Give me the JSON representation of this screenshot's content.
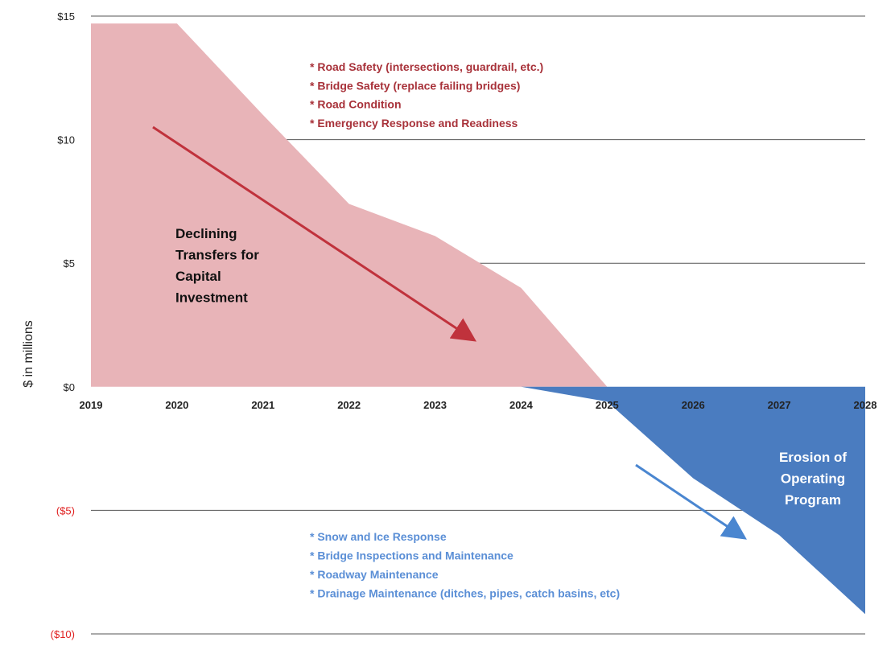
{
  "chart_data": {
    "type": "area",
    "ylabel": "$ in millions",
    "x": [
      "2019",
      "2020",
      "2021",
      "2022",
      "2023",
      "2024",
      "2025",
      "2026",
      "2027",
      "2028"
    ],
    "ylim": [
      -10,
      15
    ],
    "y_ticks": [
      {
        "value": 15,
        "label": "$15"
      },
      {
        "value": 10,
        "label": "$10"
      },
      {
        "value": 5,
        "label": "$5"
      },
      {
        "value": 0,
        "label": "$0"
      },
      {
        "value": -5,
        "label": "($5)"
      },
      {
        "value": -10,
        "label": "($10)"
      }
    ],
    "grid": true,
    "series": [
      {
        "color": "#e8b4b8",
        "points": [
          [
            2019,
            14.7
          ],
          [
            2020,
            14.7
          ],
          [
            2021,
            11.0
          ],
          [
            2022,
            7.4
          ],
          [
            2023,
            6.1
          ],
          [
            2024,
            4.0
          ],
          [
            2025,
            0
          ]
        ]
      },
      {
        "color": "#4a7cc0",
        "points": [
          [
            2024,
            0
          ],
          [
            2025,
            -0.6
          ],
          [
            2026,
            -3.7
          ],
          [
            2027,
            -6.0
          ],
          [
            2028,
            -9.2
          ],
          [
            2028,
            0
          ]
        ]
      }
    ],
    "annotations": {
      "capital_needs": [
        "*  Road Safety (intersections, guardrail, etc.)",
        "*  Bridge Safety (replace failing bridges)",
        "*  Road Condition",
        "*  Emergency Response and Readiness"
      ],
      "operating_needs": [
        "*  Snow and Ice Response",
        "*  Bridge Inspections and Maintenance",
        "*  Roadway Maintenance",
        "*  Drainage Maintenance (ditches, pipes, catch basins, etc)"
      ],
      "declining_label": [
        "Declining",
        "Transfers for",
        "Capital",
        "Investment"
      ],
      "erosion_label": [
        "Erosion of",
        "Operating",
        "Program"
      ]
    },
    "colors": {
      "capital_area": "#e8b4b8",
      "operating_area": "#4a7cc0",
      "capital_arrow": "#c0323c",
      "operating_arrow": "#4a86d0",
      "capital_text": "#a8323a",
      "operating_text": "#5b8fd6",
      "negative_tick": "#e02020"
    }
  }
}
